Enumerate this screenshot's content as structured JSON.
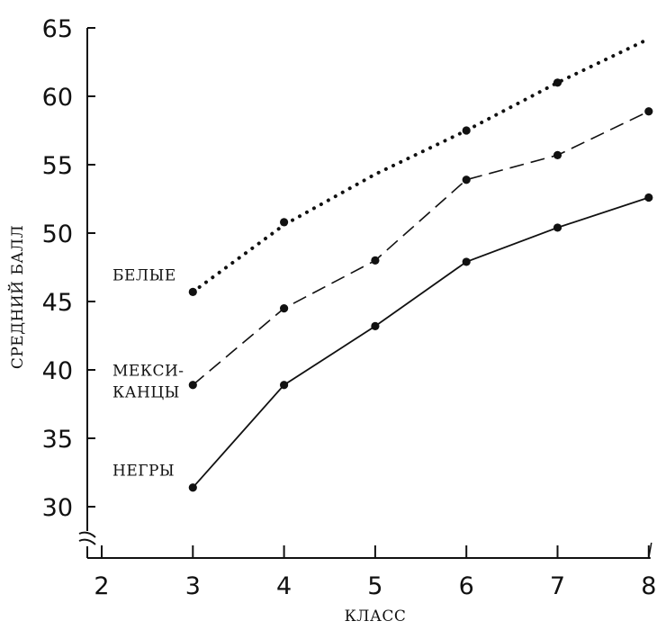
{
  "chart_data": {
    "type": "line",
    "xlabel": "КЛАСС",
    "ylabel": "СРЕДНИЙ БАЛЛ",
    "x": [
      3,
      4,
      5,
      6,
      7,
      8
    ],
    "xlim": [
      2,
      8
    ],
    "ylim": [
      30,
      65
    ],
    "y_axis_break": true,
    "grid": false,
    "x_ticks": [
      "2",
      "3",
      "4",
      "5",
      "6",
      "7",
      "8"
    ],
    "y_ticks": [
      "30",
      "35",
      "40",
      "45",
      "50",
      "55",
      "60",
      "65"
    ],
    "series": [
      {
        "name": "БЕЛЫЕ",
        "style": "dotted",
        "values": [
          45.7,
          50.8,
          null,
          57.5,
          61.0,
          null
        ],
        "trend_line": [
          45.7,
          50.6,
          54.3,
          57.5,
          61.0,
          64.2
        ]
      },
      {
        "name": "МЕКСИ-КАНЦЫ",
        "label_lines": [
          "МЕКСИ-",
          "КАНЦЫ"
        ],
        "style": "dashed",
        "values": [
          38.9,
          44.5,
          48.0,
          53.9,
          55.7,
          58.9
        ]
      },
      {
        "name": "НЕГРЫ",
        "style": "solid",
        "values": [
          31.4,
          38.9,
          43.2,
          47.9,
          50.4,
          52.6
        ]
      }
    ]
  }
}
